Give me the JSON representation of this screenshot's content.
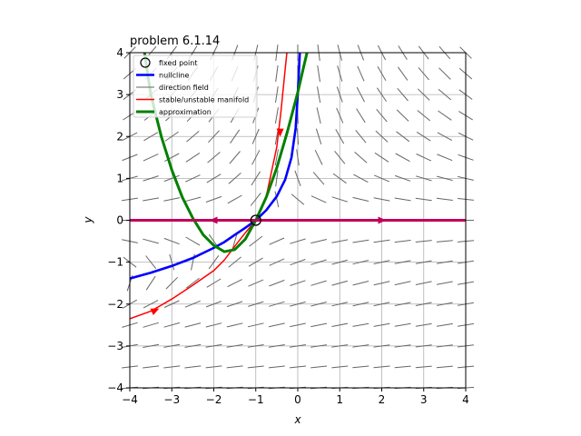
{
  "chart_data": {
    "type": "line",
    "title": "problem 6.1.14",
    "xlabel": "x",
    "ylabel": "y",
    "xlim": [
      -4,
      4
    ],
    "ylim": [
      -4,
      4
    ],
    "xticks": [
      -4,
      -3,
      -2,
      -1,
      0,
      1,
      2,
      3,
      4
    ],
    "yticks": [
      -4,
      -3,
      -2,
      -1,
      0,
      1,
      2,
      3,
      4
    ],
    "grid": true,
    "legend_position": "top-left",
    "legend": [
      {
        "label": "fixed point",
        "kind": "marker",
        "color": "#000000"
      },
      {
        "label": "nullcline",
        "kind": "line",
        "color": "#0000ff"
      },
      {
        "label": "direction field",
        "kind": "line",
        "color": "#666666"
      },
      {
        "label": "stable/unstable manifold",
        "kind": "line",
        "color": "#ff0000"
      },
      {
        "label": "approximation",
        "kind": "line",
        "color": "#008000"
      }
    ],
    "fixed_points": [
      {
        "x": -1,
        "y": 0
      }
    ],
    "nullcline": {
      "color": "#0000ff",
      "points": [
        [
          -4,
          -1.39
        ],
        [
          -3.5,
          -1.25
        ],
        [
          -3,
          -1.09
        ],
        [
          -2.5,
          -0.9
        ],
        [
          -2,
          -0.66
        ],
        [
          -1.75,
          -0.52
        ],
        [
          -1.5,
          -0.35
        ],
        [
          -1.25,
          -0.18
        ],
        [
          -1,
          0
        ],
        [
          -0.75,
          0.24
        ],
        [
          -0.5,
          0.57
        ],
        [
          -0.3,
          0.97
        ],
        [
          -0.15,
          1.5
        ],
        [
          -0.05,
          2.2
        ],
        [
          0,
          3.0
        ],
        [
          0.05,
          4.0
        ]
      ]
    },
    "manifolds": {
      "color": "#ff0000",
      "unstable": [
        [
          -4,
          -2.35
        ],
        [
          -3.5,
          -2.17
        ],
        [
          -3,
          -1.88
        ],
        [
          -2.5,
          -1.55
        ],
        [
          -2,
          -1.2
        ],
        [
          -1.75,
          -0.95
        ],
        [
          -1.5,
          -0.62
        ],
        [
          -1.25,
          -0.3
        ],
        [
          -1,
          0
        ],
        [
          -0.75,
          0.57
        ],
        [
          -0.5,
          1.75
        ],
        [
          -0.4,
          2.6
        ],
        [
          -0.3,
          3.6
        ],
        [
          -0.26,
          4.0
        ]
      ],
      "stable": [
        [
          -4,
          0
        ],
        [
          4,
          0
        ]
      ],
      "arrows": [
        {
          "x": -3.4,
          "y": -2.15,
          "dir": "up-right"
        },
        {
          "x": -0.42,
          "y": 2.1,
          "dir": "down"
        },
        {
          "x": -2.0,
          "y": 0,
          "dir": "left"
        },
        {
          "x": 2.0,
          "y": 0,
          "dir": "right"
        }
      ]
    },
    "approximation": {
      "color": "#008000",
      "points": [
        [
          -3.65,
          4.0
        ],
        [
          -3.5,
          3.0
        ],
        [
          -3.25,
          2.0
        ],
        [
          -3.0,
          1.2
        ],
        [
          -2.75,
          0.55
        ],
        [
          -2.5,
          0.05
        ],
        [
          -2.25,
          -0.35
        ],
        [
          -2.0,
          -0.6
        ],
        [
          -1.75,
          -0.75
        ],
        [
          -1.5,
          -0.7
        ],
        [
          -1.25,
          -0.45
        ],
        [
          -1.0,
          0.0
        ],
        [
          -0.75,
          0.55
        ],
        [
          -0.5,
          1.25
        ],
        [
          -0.25,
          2.1
        ],
        [
          0.0,
          3.05
        ],
        [
          0.15,
          3.7
        ],
        [
          0.22,
          4.0
        ]
      ]
    }
  }
}
